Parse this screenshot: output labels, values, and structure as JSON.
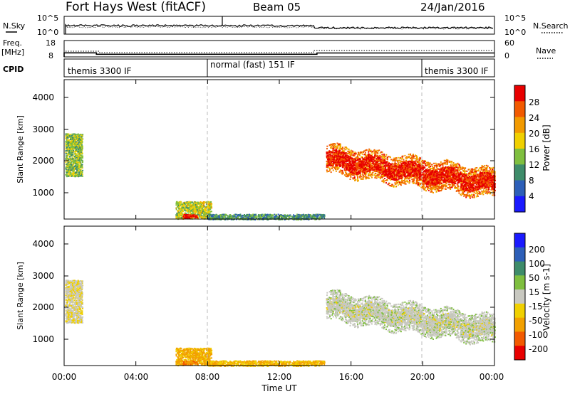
{
  "header": {
    "station": "Fort Hays West (fitACF)",
    "beam": "Beam 05",
    "date": "24/Jan/2016"
  },
  "noise_panel": {
    "left_label": "N.Sky",
    "right_label": "N.Search",
    "left_ticks": [
      "10^5",
      "10^0"
    ],
    "right_ticks": [
      "10^5",
      "10^0"
    ]
  },
  "freq_panel": {
    "left_label_1": "Freq.",
    "left_label_2": "[MHz]",
    "left_ticks": [
      "18",
      "8"
    ],
    "right_label": "Nave",
    "right_ticks": [
      "60",
      "0"
    ]
  },
  "cpid_panel": {
    "label": "CPID",
    "programs": [
      {
        "label": "themis 3300 IF",
        "start_hour": 0
      },
      {
        "label": "normal (fast) 151 IF",
        "start_hour": 8
      },
      {
        "label": "themis 3300 IF",
        "start_hour": 20
      }
    ]
  },
  "x_axis": {
    "label": "Time UT",
    "ticks": [
      "00:00",
      "04:00",
      "08:00",
      "12:00",
      "16:00",
      "20:00",
      "00:00"
    ],
    "range_hours": [
      0,
      24
    ]
  },
  "power_panel": {
    "ylabel": "Slant Range [km]",
    "yticks": [
      "1000",
      "2000",
      "3000",
      "4000"
    ],
    "colorbar_label": "Power [dB]",
    "colorbar_ticks": [
      "4",
      "8",
      "12",
      "16",
      "20",
      "24",
      "28"
    ]
  },
  "velocity_panel": {
    "ylabel": "Slant Range [km]",
    "yticks": [
      "1000",
      "2000",
      "3000",
      "4000"
    ],
    "colorbar_label": "Velocity [m s-1]",
    "colorbar_ticks": [
      "200",
      "100",
      "50",
      "15",
      "-15",
      "-50",
      "-100",
      "-200"
    ]
  },
  "chart_data": {
    "type": "heatmap",
    "x_range_hours": [
      0,
      24
    ],
    "y_range_km": [
      180,
      4600
    ],
    "power_scale": {
      "range_db": [
        0,
        32
      ],
      "colors": [
        "#1a1aff",
        "#2d5fb8",
        "#3e8c6a",
        "#7fbf3f",
        "#f0d000",
        "#f29a00",
        "#f25a00",
        "#e80000"
      ]
    },
    "velocity_scale": {
      "range_ms": [
        -250,
        250
      ],
      "colors_top_to_bottom": [
        "#1a1aff",
        "#2d5fb8",
        "#3e8c6a",
        "#7fbf3f",
        "#c8c8c0",
        "#f0d000",
        "#f2a000",
        "#f25a00",
        "#e80000"
      ]
    },
    "frequency_mhz": [
      {
        "from": 0,
        "to": 1.8,
        "value": 10.5
      },
      {
        "from": 1.8,
        "to": 14.1,
        "value": 9.6
      },
      {
        "from": 14.1,
        "to": 24,
        "value": 10.4
      }
    ],
    "scatter_regions": [
      {
        "t0": 0.05,
        "t1": 1.0,
        "r0": 1550,
        "r1": 2900,
        "power_db": 14,
        "velocity_ms": -10
      },
      {
        "t0": 6.2,
        "t1": 8.2,
        "r0": 200,
        "r1": 750,
        "power_db": 16,
        "velocity_ms": -40
      },
      {
        "t0": 6.6,
        "t1": 7.4,
        "r0": 220,
        "r1": 340,
        "power_db": 30,
        "velocity_ms": -80
      },
      {
        "t0": 8.0,
        "t1": 14.5,
        "r0": 180,
        "r1": 350,
        "power_db": 10,
        "velocity_ms": -35
      },
      {
        "t0": 14.6,
        "t1": 24.0,
        "r0": 1100,
        "r1": 2800,
        "power_db": 24,
        "velocity_ms": 5
      },
      {
        "t0": 14.6,
        "t1": 24.0,
        "r0": 1200,
        "r1": 2100,
        "power_db": 30,
        "velocity_ms": 0
      }
    ]
  }
}
